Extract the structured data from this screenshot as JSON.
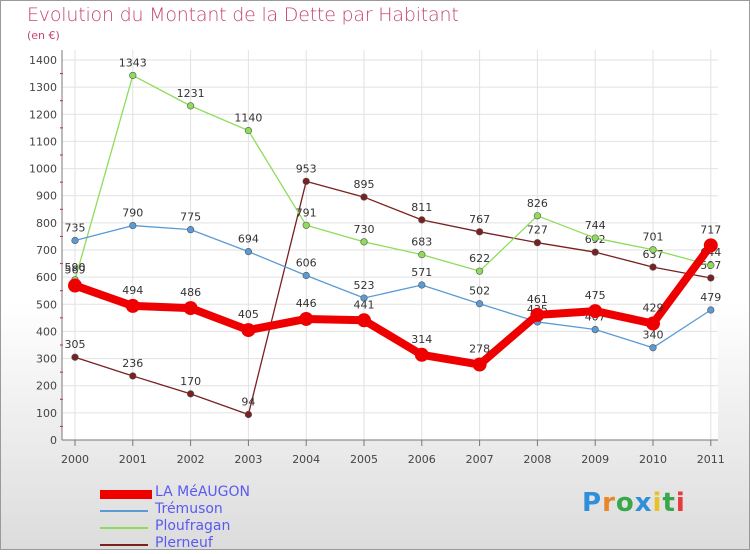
{
  "title": "Evolution du Montant de la Dette par Habitant",
  "subtitle": "(en €)",
  "logo": {
    "text": "Proxiti",
    "letter_colors": [
      "#2f8fd8",
      "#e8862a",
      "#3aa84a",
      "#2f8fd8",
      "#e8c22a",
      "#3aa84a",
      "#e83a3a"
    ]
  },
  "chart_data": {
    "type": "line",
    "categories": [
      "2000",
      "2001",
      "2002",
      "2003",
      "2004",
      "2005",
      "2006",
      "2007",
      "2008",
      "2009",
      "2010",
      "2011"
    ],
    "ylim": [
      0,
      1400
    ],
    "yticks": [
      "0",
      "100",
      "200",
      "300",
      "400",
      "500",
      "600",
      "700",
      "800",
      "900",
      "1000",
      "1100",
      "1200",
      "1300",
      "1400"
    ],
    "grid": true,
    "legend_position": "bottom-left",
    "series": [
      {
        "name": "LA MéAUGON",
        "color": "#ee0000",
        "values": [
          569,
          494,
          486,
          405,
          446,
          441,
          314,
          278,
          461,
          475,
          429,
          717
        ],
        "labels": [
          "569",
          "494",
          "486",
          "405",
          "446",
          "441",
          "314",
          "278",
          "461",
          "475",
          "429",
          "717"
        ]
      },
      {
        "name": "Trémuson",
        "color": "#5b9bd5",
        "values": [
          735,
          790,
          775,
          694,
          606,
          523,
          571,
          502,
          435,
          407,
          340,
          479
        ],
        "labels": [
          "735",
          "790",
          "775",
          "694",
          "606",
          "523",
          "571",
          "502",
          "435",
          "407",
          "340",
          "479"
        ]
      },
      {
        "name": "Ploufragan",
        "color": "#8fdc5a",
        "values": [
          590,
          1343,
          1231,
          1140,
          791,
          730,
          683,
          622,
          826,
          744,
          701,
          644
        ],
        "labels": [
          "590",
          "1343",
          "1231",
          "1140",
          "791",
          "730",
          "683",
          "622",
          "826",
          "744",
          "701",
          "644"
        ]
      },
      {
        "name": "Plerneuf",
        "color": "#7a2020",
        "values": [
          305,
          236,
          170,
          94,
          953,
          895,
          811,
          767,
          727,
          692,
          637,
          597
        ],
        "labels": [
          "305",
          "236",
          "170",
          "94",
          "953",
          "895",
          "811",
          "767",
          "727",
          "692",
          "637",
          "597"
        ]
      }
    ]
  }
}
